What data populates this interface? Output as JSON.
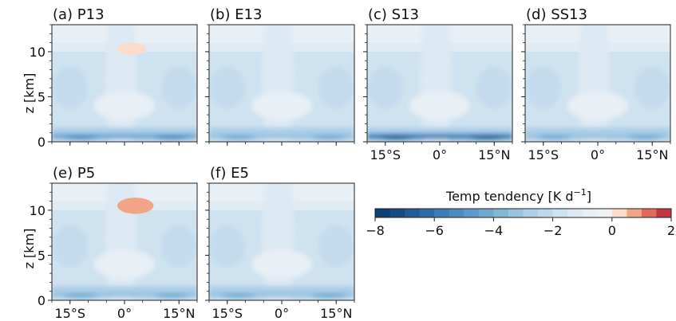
{
  "chart_data": {
    "type": "heatmap",
    "panels": [
      {
        "id": "P13",
        "title": "(a) P13",
        "show_y_ticks": true,
        "show_x_ticks": false,
        "hot": [
          {
            "x": 2,
            "z": 10.3,
            "rx": 4,
            "rz": 0.7,
            "value": 0.4
          }
        ],
        "near_surface_min": -4.5,
        "note": "band near 0.6 km"
      },
      {
        "id": "E13",
        "title": "(b) E13",
        "show_y_ticks": false,
        "show_x_ticks": false,
        "hot": []
      },
      {
        "id": "S13",
        "title": "(c) S13",
        "show_y_ticks": false,
        "show_x_ticks": true,
        "hot": [],
        "near_surface_min": -6
      },
      {
        "id": "SS13",
        "title": "(d) SS13",
        "show_y_ticks": false,
        "show_x_ticks": true,
        "hot": []
      },
      {
        "id": "P5",
        "title": "(e) P5",
        "show_y_ticks": true,
        "show_x_ticks": true,
        "hot": [
          {
            "x": 3,
            "z": 10.5,
            "rx": 5,
            "rz": 0.9,
            "value": 0.5
          }
        ]
      },
      {
        "id": "E5",
        "title": "(f) E5",
        "show_y_ticks": false,
        "show_x_ticks": true,
        "hot": []
      }
    ],
    "x_ticks": [
      "15°S",
      "0°",
      "15°N"
    ],
    "x_tick_values": [
      -15,
      0,
      15
    ],
    "xlim": [
      -20,
      20
    ],
    "ylabel": "z [km]",
    "y_ticks": [
      "0",
      "5",
      "10"
    ],
    "y_tick_values": [
      0,
      5,
      10
    ],
    "ylim": [
      0,
      13
    ],
    "colorbar": {
      "label": "Temp tendency [K d",
      "label_sup": "−1",
      "label_end": "]",
      "ticks": [
        "−8",
        "−6",
        "−4",
        "−2",
        "0",
        "2"
      ],
      "tick_values": [
        -8,
        -6,
        -4,
        -2,
        0,
        2
      ],
      "levels": [
        -8,
        -7.5,
        -7,
        -6.5,
        -6,
        -5.5,
        -5,
        -4.5,
        -4,
        -3.5,
        -3,
        -2.5,
        -2,
        -1.5,
        -1,
        -0.5,
        0,
        0.5,
        1,
        1.5,
        2
      ],
      "colors": [
        "#0c3f73",
        "#154b85",
        "#1f5b96",
        "#2b6ca8",
        "#3a7db8",
        "#4a8bc2",
        "#5b9acb",
        "#6fa8d3",
        "#84b6da",
        "#99c3e1",
        "#aecfe7",
        "#bfd9ec",
        "#cfe2f0",
        "#dde9f3",
        "#e8eff5",
        "#f0f3f6",
        "#fbdccb",
        "#f2a486",
        "#e06a58",
        "#c13540"
      ],
      "cmap": "RdBu_r"
    }
  }
}
